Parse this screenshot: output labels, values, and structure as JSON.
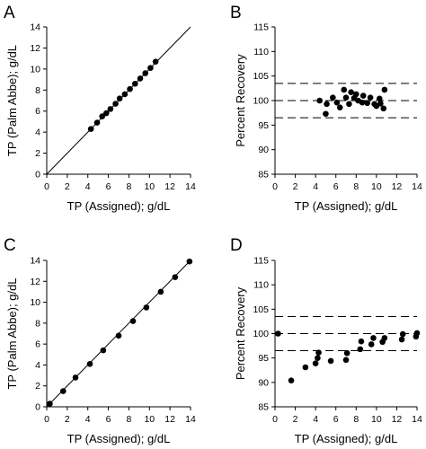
{
  "chart_data": [
    {
      "panel": "A",
      "type": "scatter",
      "xlabel": "TP (Assigned); g/dL",
      "ylabel": "TP (Palm Abbe); g/dL",
      "xlim": [
        0,
        14
      ],
      "ylim": [
        0,
        14
      ],
      "xticks": [
        0,
        2,
        4,
        6,
        8,
        10,
        12,
        14
      ],
      "yticks": [
        0,
        2,
        4,
        6,
        8,
        10,
        12,
        14
      ],
      "reference_lines": [
        {
          "kind": "identity",
          "style": "solid"
        }
      ],
      "x": [
        4.3,
        4.9,
        5.4,
        5.8,
        6.2,
        6.7,
        7.1,
        7.6,
        8.1,
        8.6,
        9.1,
        9.6,
        10.1,
        10.6
      ],
      "y": [
        4.3,
        4.9,
        5.5,
        5.8,
        6.2,
        6.7,
        7.2,
        7.6,
        8.1,
        8.6,
        9.1,
        9.6,
        10.1,
        10.7
      ]
    },
    {
      "panel": "B",
      "type": "scatter",
      "xlabel": "TP (Assigned); g/dL",
      "ylabel": "Percent Recovery",
      "xlim": [
        0,
        14
      ],
      "ylim": [
        85,
        115
      ],
      "xticks": [
        0,
        2,
        4,
        6,
        8,
        10,
        12,
        14
      ],
      "yticks": [
        85,
        90,
        95,
        100,
        105,
        110,
        115
      ],
      "reference_lines": [
        {
          "kind": "horizontal",
          "y": 103.5,
          "style": "dashed"
        },
        {
          "kind": "horizontal",
          "y": 100,
          "style": "dashed"
        },
        {
          "kind": "horizontal",
          "y": 96.5,
          "style": "dashed"
        }
      ],
      "x": [
        4.4,
        5.0,
        5.1,
        5.7,
        6.1,
        6.4,
        6.8,
        7.0,
        7.3,
        7.5,
        7.8,
        8.0,
        8.2,
        8.6,
        8.7,
        9.1,
        9.4,
        9.8,
        10.0,
        10.3,
        10.4,
        10.7,
        10.8
      ],
      "y": [
        100.0,
        97.3,
        99.3,
        100.6,
        99.6,
        98.6,
        102.2,
        100.6,
        99.3,
        101.7,
        100.5,
        101.3,
        100.0,
        99.6,
        101.0,
        99.5,
        100.6,
        99.3,
        98.9,
        100.4,
        99.4,
        98.4,
        102.2
      ]
    },
    {
      "panel": "C",
      "type": "scatter",
      "xlabel": "TP (Assigned); g/dL",
      "ylabel": "TP (Palm Abbe); g/dL",
      "xlim": [
        0,
        14
      ],
      "ylim": [
        0,
        14
      ],
      "xticks": [
        0,
        2,
        4,
        6,
        8,
        10,
        12,
        14
      ],
      "yticks": [
        0,
        2,
        4,
        6,
        8,
        10,
        12,
        14
      ],
      "reference_lines": [
        {
          "kind": "identity",
          "style": "solid"
        }
      ],
      "x": [
        0.3,
        1.6,
        2.8,
        4.2,
        5.5,
        7.0,
        8.4,
        9.7,
        11.1,
        12.5,
        13.9
      ],
      "y": [
        0.3,
        1.5,
        2.8,
        4.1,
        5.4,
        6.8,
        8.2,
        9.5,
        11.0,
        12.4,
        13.9
      ]
    },
    {
      "panel": "D",
      "type": "scatter",
      "xlabel": "TP (Assigned); g/dL",
      "ylabel": "Percent Recovery",
      "xlim": [
        0,
        14
      ],
      "ylim": [
        85,
        115
      ],
      "xticks": [
        0,
        2,
        4,
        6,
        8,
        10,
        12,
        14
      ],
      "yticks": [
        85,
        90,
        95,
        100,
        105,
        110,
        115
      ],
      "reference_lines": [
        {
          "kind": "horizontal",
          "y": 103.5,
          "style": "dashed"
        },
        {
          "kind": "horizontal",
          "y": 100,
          "style": "dashed"
        },
        {
          "kind": "horizontal",
          "y": 96.5,
          "style": "dashed"
        }
      ],
      "x": [
        0.3,
        1.6,
        3.0,
        4.0,
        4.2,
        4.3,
        5.5,
        7.0,
        7.1,
        8.4,
        8.5,
        9.5,
        9.7,
        10.6,
        10.8,
        12.5,
        12.6,
        13.9,
        14.0
      ],
      "y": [
        100.0,
        90.4,
        93.1,
        93.9,
        95.0,
        96.1,
        94.4,
        94.6,
        96.0,
        96.8,
        98.4,
        97.8,
        99.1,
        98.3,
        99.1,
        98.8,
        99.9,
        99.4,
        100.1
      ]
    }
  ]
}
